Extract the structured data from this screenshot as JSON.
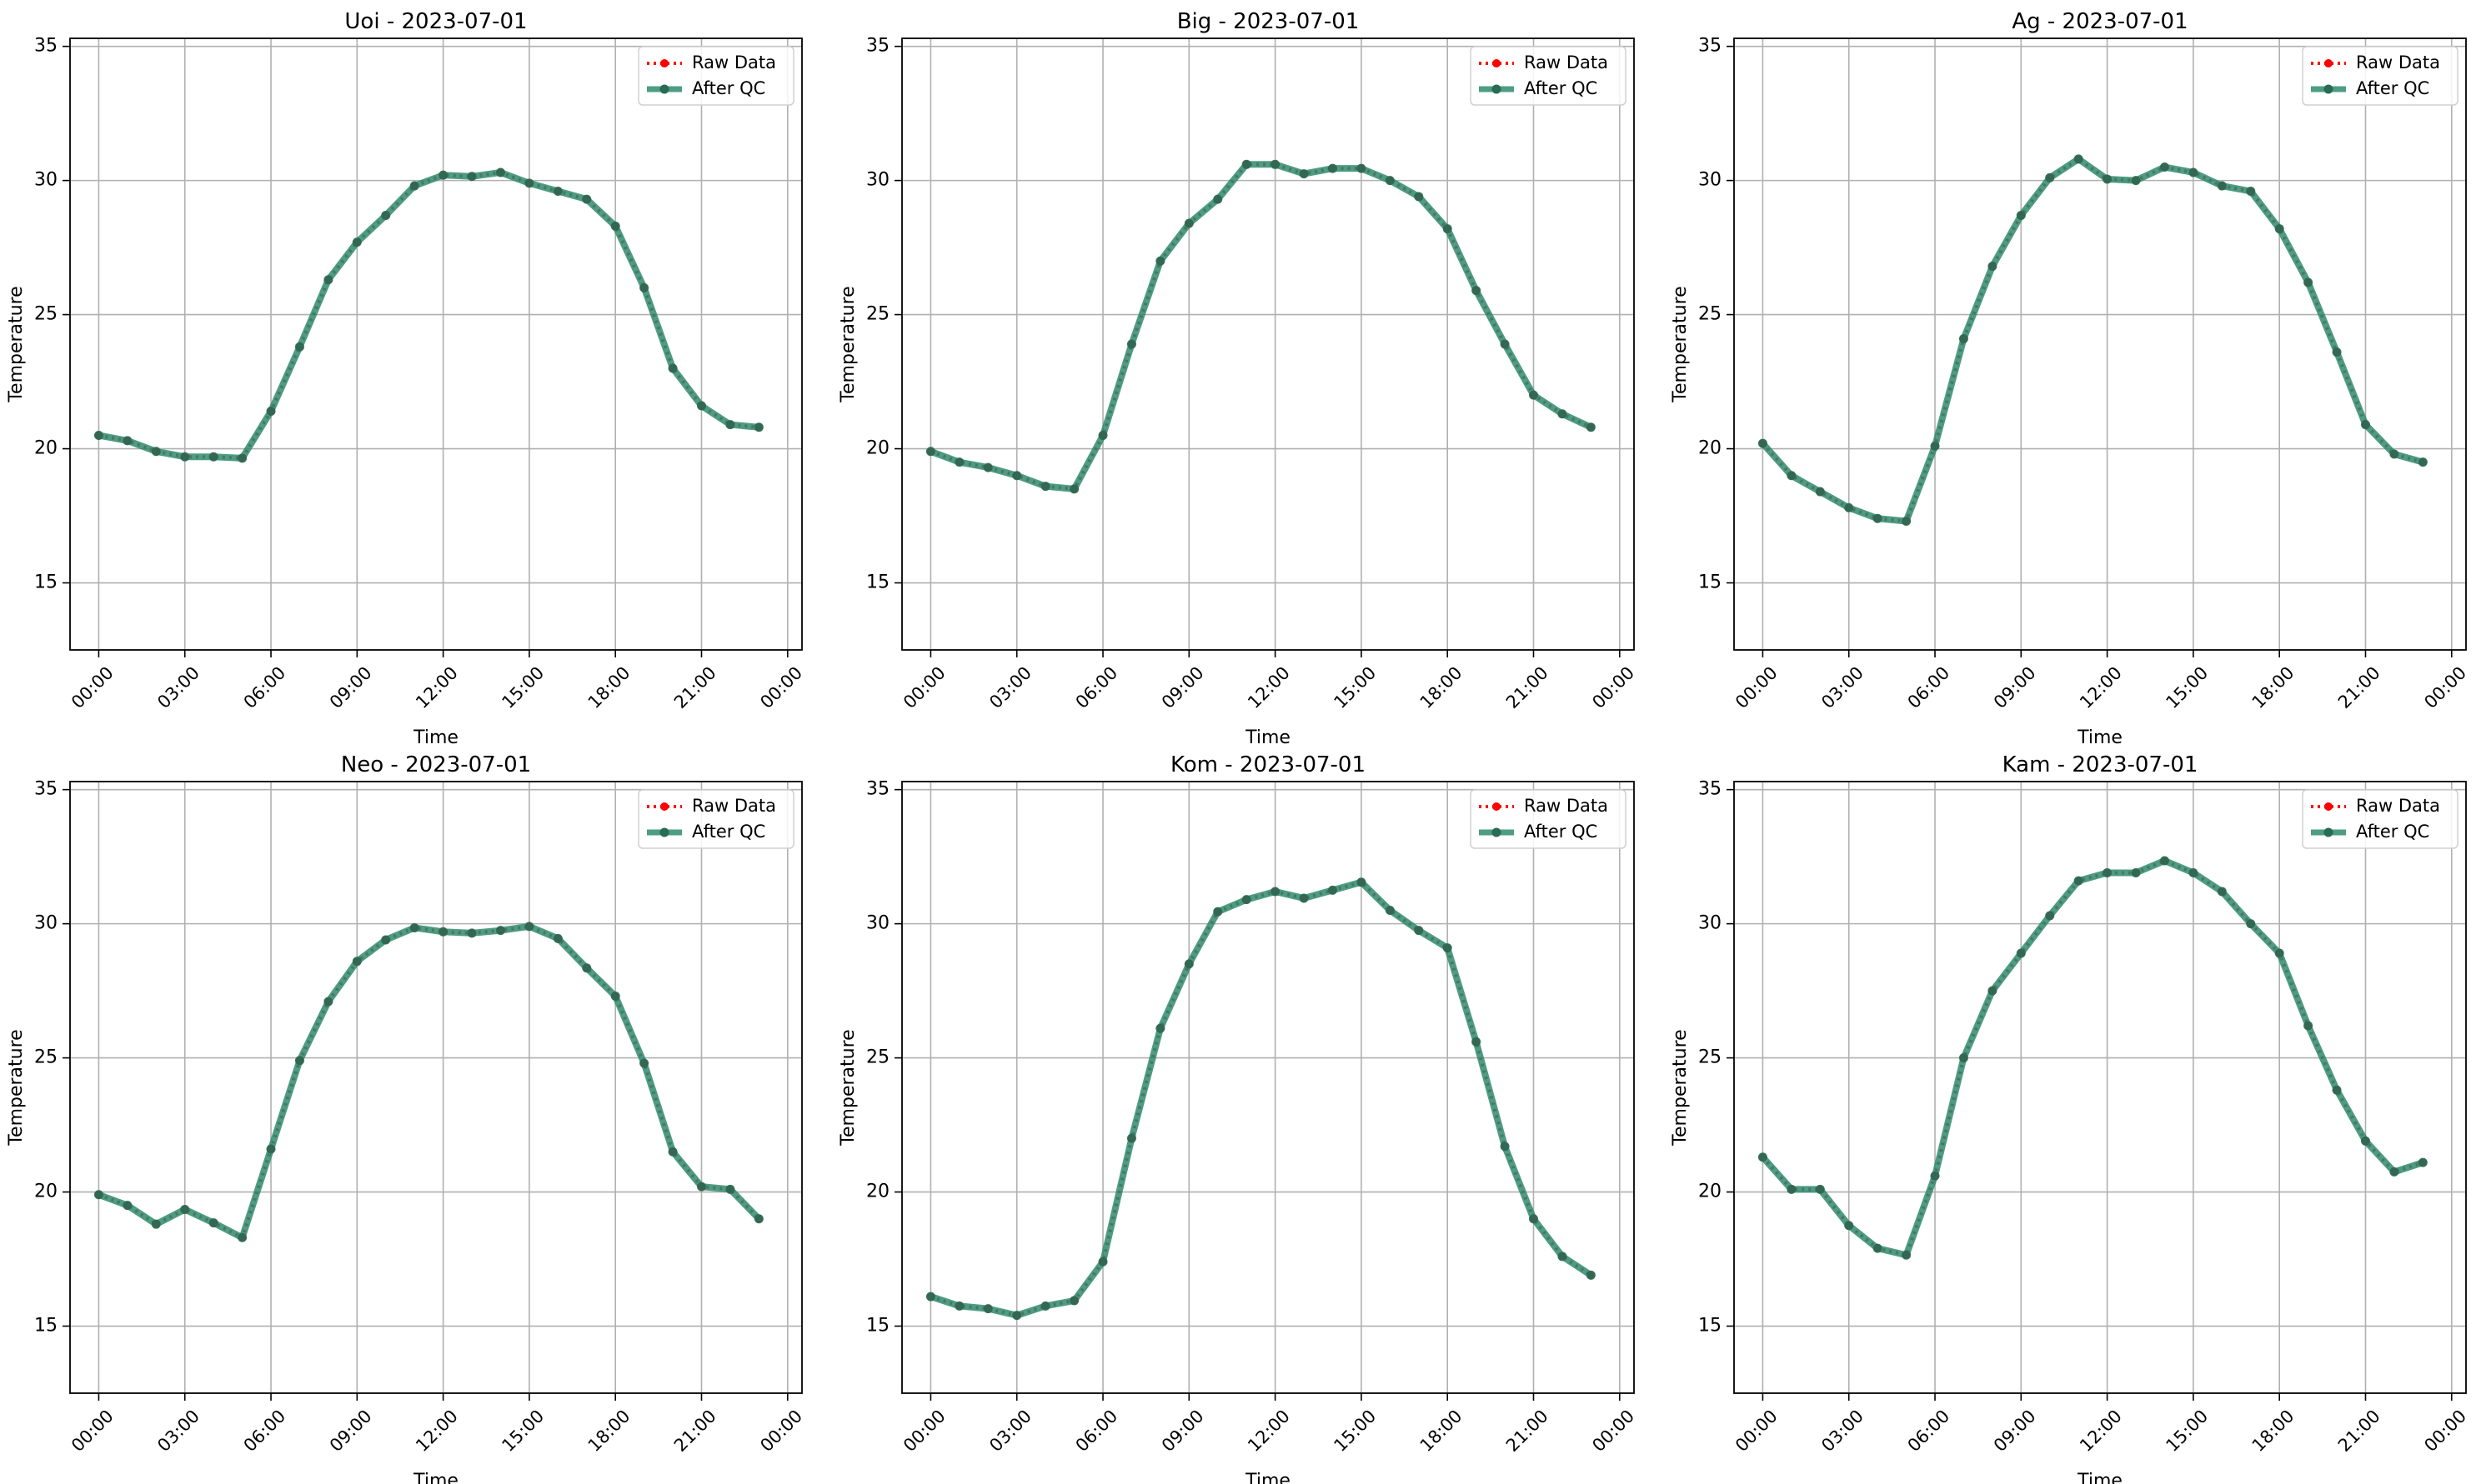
{
  "chart_data": [
    {
      "type": "line",
      "title": "Uoi - 2023-07-01",
      "xlabel": "Time",
      "ylabel": "Temperature",
      "ylim": [
        12.5,
        35.3
      ],
      "xlim": [
        -1,
        24.5
      ],
      "x_ticks": [
        0,
        3,
        6,
        9,
        12,
        15,
        18,
        21,
        24
      ],
      "x_tick_labels": [
        "00:00",
        "03:00",
        "06:00",
        "09:00",
        "12:00",
        "15:00",
        "18:00",
        "21:00",
        "00:00"
      ],
      "y_ticks": [
        15,
        20,
        25,
        30,
        35
      ],
      "y_tick_labels": [
        "15",
        "20",
        "25",
        "30",
        "35"
      ],
      "grid": true,
      "legend": "upper-right",
      "x": [
        0,
        1,
        2,
        3,
        4,
        5,
        6,
        7,
        8,
        9,
        10,
        11,
        12,
        13,
        14,
        15,
        16,
        17,
        18,
        19,
        20,
        21,
        22,
        23
      ],
      "series": [
        {
          "name": "Raw Data",
          "color": "#ff0000",
          "values": [
            20.5,
            20.3,
            19.9,
            19.7,
            19.7,
            19.65,
            21.4,
            23.8,
            26.3,
            27.7,
            28.7,
            29.8,
            30.2,
            30.15,
            30.3,
            29.9,
            29.6,
            29.3,
            28.3,
            26.0,
            23.0,
            21.6,
            20.9,
            20.8
          ]
        },
        {
          "name": "After QC",
          "color": "#2e8b6e",
          "values": [
            20.5,
            20.3,
            19.9,
            19.7,
            19.7,
            19.65,
            21.4,
            23.8,
            26.3,
            27.7,
            28.7,
            29.8,
            30.2,
            30.15,
            30.3,
            29.9,
            29.6,
            29.3,
            28.3,
            26.0,
            23.0,
            21.6,
            20.9,
            20.8
          ]
        }
      ]
    },
    {
      "type": "line",
      "title": "Big - 2023-07-01",
      "xlabel": "Time",
      "ylabel": "Temperature",
      "ylim": [
        12.5,
        35.3
      ],
      "xlim": [
        -1,
        24.5
      ],
      "x_ticks": [
        0,
        3,
        6,
        9,
        12,
        15,
        18,
        21,
        24
      ],
      "x_tick_labels": [
        "00:00",
        "03:00",
        "06:00",
        "09:00",
        "12:00",
        "15:00",
        "18:00",
        "21:00",
        "00:00"
      ],
      "y_ticks": [
        15,
        20,
        25,
        30,
        35
      ],
      "y_tick_labels": [
        "15",
        "20",
        "25",
        "30",
        "35"
      ],
      "grid": true,
      "legend": "upper-right",
      "x": [
        0,
        1,
        2,
        3,
        4,
        5,
        6,
        7,
        8,
        9,
        10,
        11,
        12,
        13,
        14,
        15,
        16,
        17,
        18,
        19,
        20,
        21,
        22,
        23
      ],
      "series": [
        {
          "name": "Raw Data",
          "color": "#ff0000",
          "values": [
            19.9,
            19.5,
            19.3,
            19.0,
            18.6,
            18.5,
            20.5,
            23.9,
            27.0,
            28.4,
            29.3,
            30.6,
            30.6,
            30.25,
            30.45,
            30.45,
            30.0,
            29.4,
            28.2,
            25.9,
            23.9,
            22.0,
            21.3,
            20.8
          ]
        },
        {
          "name": "After QC",
          "color": "#2e8b6e",
          "values": [
            19.9,
            19.5,
            19.3,
            19.0,
            18.6,
            18.5,
            20.5,
            23.9,
            27.0,
            28.4,
            29.3,
            30.6,
            30.6,
            30.25,
            30.45,
            30.45,
            30.0,
            29.4,
            28.2,
            25.9,
            23.9,
            22.0,
            21.3,
            20.8
          ]
        }
      ]
    },
    {
      "type": "line",
      "title": "Ag - 2023-07-01",
      "xlabel": "Time",
      "ylabel": "Temperature",
      "ylim": [
        12.5,
        35.3
      ],
      "xlim": [
        -1,
        24.5
      ],
      "x_ticks": [
        0,
        3,
        6,
        9,
        12,
        15,
        18,
        21,
        24
      ],
      "x_tick_labels": [
        "00:00",
        "03:00",
        "06:00",
        "09:00",
        "12:00",
        "15:00",
        "18:00",
        "21:00",
        "00:00"
      ],
      "y_ticks": [
        15,
        20,
        25,
        30,
        35
      ],
      "y_tick_labels": [
        "15",
        "20",
        "25",
        "30",
        "35"
      ],
      "grid": true,
      "legend": "upper-right",
      "x": [
        0,
        1,
        2,
        3,
        4,
        5,
        6,
        7,
        8,
        9,
        10,
        11,
        12,
        13,
        14,
        15,
        16,
        17,
        18,
        19,
        20,
        21,
        22,
        23
      ],
      "series": [
        {
          "name": "Raw Data",
          "color": "#ff0000",
          "values": [
            20.2,
            19.0,
            18.4,
            17.8,
            17.4,
            17.3,
            20.1,
            24.1,
            26.8,
            28.7,
            30.1,
            30.8,
            30.05,
            30.0,
            30.5,
            30.3,
            29.8,
            29.6,
            28.2,
            26.2,
            23.6,
            20.9,
            19.8,
            19.5
          ]
        },
        {
          "name": "After QC",
          "color": "#2e8b6e",
          "values": [
            20.2,
            19.0,
            18.4,
            17.8,
            17.4,
            17.3,
            20.1,
            24.1,
            26.8,
            28.7,
            30.1,
            30.8,
            30.05,
            30.0,
            30.5,
            30.3,
            29.8,
            29.6,
            28.2,
            26.2,
            23.6,
            20.9,
            19.8,
            19.5
          ]
        }
      ]
    },
    {
      "type": "line",
      "title": "Neo - 2023-07-01",
      "xlabel": "Time",
      "ylabel": "Temperature",
      "ylim": [
        12.5,
        35.3
      ],
      "xlim": [
        -1,
        24.5
      ],
      "x_ticks": [
        0,
        3,
        6,
        9,
        12,
        15,
        18,
        21,
        24
      ],
      "x_tick_labels": [
        "00:00",
        "03:00",
        "06:00",
        "09:00",
        "12:00",
        "15:00",
        "18:00",
        "21:00",
        "00:00"
      ],
      "y_ticks": [
        15,
        20,
        25,
        30,
        35
      ],
      "y_tick_labels": [
        "15",
        "20",
        "25",
        "30",
        "35"
      ],
      "grid": true,
      "legend": "upper-right",
      "x": [
        0,
        1,
        2,
        3,
        4,
        5,
        6,
        7,
        8,
        9,
        10,
        11,
        12,
        13,
        14,
        15,
        16,
        17,
        18,
        19,
        20,
        21,
        22,
        23
      ],
      "series": [
        {
          "name": "Raw Data",
          "color": "#ff0000",
          "values": [
            19.9,
            19.5,
            18.8,
            19.35,
            18.85,
            18.3,
            21.6,
            24.9,
            27.1,
            28.6,
            29.4,
            29.85,
            29.7,
            29.65,
            29.75,
            29.9,
            29.45,
            28.35,
            27.3,
            24.8,
            21.5,
            20.2,
            20.1,
            19.0
          ]
        },
        {
          "name": "After QC",
          "color": "#2e8b6e",
          "values": [
            19.9,
            19.5,
            18.8,
            19.35,
            18.85,
            18.3,
            21.6,
            24.9,
            27.1,
            28.6,
            29.4,
            29.85,
            29.7,
            29.65,
            29.75,
            29.9,
            29.45,
            28.35,
            27.3,
            24.8,
            21.5,
            20.2,
            20.1,
            19.0
          ]
        }
      ]
    },
    {
      "type": "line",
      "title": "Kom - 2023-07-01",
      "xlabel": "Time",
      "ylabel": "Temperature",
      "ylim": [
        12.5,
        35.3
      ],
      "xlim": [
        -1,
        24.5
      ],
      "x_ticks": [
        0,
        3,
        6,
        9,
        12,
        15,
        18,
        21,
        24
      ],
      "x_tick_labels": [
        "00:00",
        "03:00",
        "06:00",
        "09:00",
        "12:00",
        "15:00",
        "18:00",
        "21:00",
        "00:00"
      ],
      "y_ticks": [
        15,
        20,
        25,
        30,
        35
      ],
      "y_tick_labels": [
        "15",
        "20",
        "25",
        "30",
        "35"
      ],
      "grid": true,
      "legend": "upper-right",
      "x": [
        0,
        1,
        2,
        3,
        4,
        5,
        6,
        7,
        8,
        9,
        10,
        11,
        12,
        13,
        14,
        15,
        16,
        17,
        18,
        19,
        20,
        21,
        22,
        23
      ],
      "series": [
        {
          "name": "Raw Data",
          "color": "#ff0000",
          "values": [
            16.1,
            15.75,
            15.65,
            15.4,
            15.75,
            15.95,
            17.4,
            22.0,
            26.1,
            28.5,
            30.45,
            30.9,
            31.2,
            30.95,
            31.25,
            31.55,
            30.5,
            29.75,
            29.1,
            25.6,
            21.7,
            19.0,
            17.6,
            16.9
          ]
        },
        {
          "name": "After QC",
          "color": "#2e8b6e",
          "values": [
            16.1,
            15.75,
            15.65,
            15.4,
            15.75,
            15.95,
            17.4,
            22.0,
            26.1,
            28.5,
            30.45,
            30.9,
            31.2,
            30.95,
            31.25,
            31.55,
            30.5,
            29.75,
            29.1,
            25.6,
            21.7,
            19.0,
            17.6,
            16.9
          ]
        }
      ]
    },
    {
      "type": "line",
      "title": "Kam - 2023-07-01",
      "xlabel": "Time",
      "ylabel": "Temperature",
      "ylim": [
        12.5,
        35.3
      ],
      "xlim": [
        -1,
        24.5
      ],
      "x_ticks": [
        0,
        3,
        6,
        9,
        12,
        15,
        18,
        21,
        24
      ],
      "x_tick_labels": [
        "00:00",
        "03:00",
        "06:00",
        "09:00",
        "12:00",
        "15:00",
        "18:00",
        "21:00",
        "00:00"
      ],
      "y_ticks": [
        15,
        20,
        25,
        30,
        35
      ],
      "y_tick_labels": [
        "15",
        "20",
        "25",
        "30",
        "35"
      ],
      "grid": true,
      "legend": "upper-right",
      "x": [
        0,
        1,
        2,
        3,
        4,
        5,
        6,
        7,
        8,
        9,
        10,
        11,
        12,
        13,
        14,
        15,
        16,
        17,
        18,
        19,
        20,
        21,
        22,
        23
      ],
      "series": [
        {
          "name": "Raw Data",
          "color": "#ff0000",
          "values": [
            21.3,
            20.1,
            20.1,
            18.75,
            17.9,
            17.65,
            20.6,
            25.0,
            27.5,
            28.9,
            30.3,
            31.6,
            31.9,
            31.9,
            32.35,
            31.9,
            31.2,
            30.0,
            28.9,
            26.2,
            23.8,
            21.9,
            20.75,
            21.1
          ]
        },
        {
          "name": "After QC",
          "color": "#2e8b6e",
          "values": [
            21.3,
            20.1,
            20.1,
            18.75,
            17.9,
            17.65,
            20.6,
            25.0,
            27.5,
            28.9,
            30.3,
            31.6,
            31.9,
            31.9,
            32.35,
            31.9,
            31.2,
            30.0,
            28.9,
            26.2,
            23.8,
            21.9,
            20.75,
            21.1
          ]
        }
      ]
    }
  ]
}
